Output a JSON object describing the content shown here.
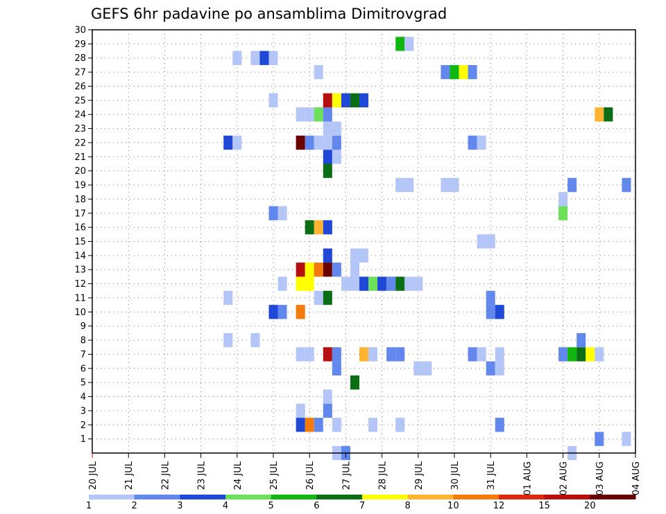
{
  "chart_data": {
    "type": "heatmap",
    "title": "GEFS 6hr padavine po ansamblima Dimitrovgrad",
    "x_tick_labels": [
      "20 JUL",
      "21 JUL",
      "22 JUL",
      "23 JUL",
      "24 JUL",
      "25 JUL",
      "26 JUL",
      "27 JUL",
      "28 JUL",
      "29 JUL",
      "30 JUL",
      "31 JUL",
      "01 AUG",
      "02 AUG",
      "03 AUG",
      "04 AUG"
    ],
    "y_tick_labels": [
      "1",
      "2",
      "3",
      "4",
      "5",
      "6",
      "7",
      "8",
      "9",
      "10",
      "11",
      "12",
      "13",
      "14",
      "15",
      "16",
      "17",
      "18",
      "19",
      "20",
      "21",
      "22",
      "23",
      "24",
      "25",
      "26",
      "27",
      "28",
      "29",
      "30"
    ],
    "xlim_days": [
      0,
      15
    ],
    "ylim_members": [
      0,
      30
    ],
    "grid": true,
    "colorbar": {
      "tick_labels": [
        "1",
        "2",
        "3",
        "4",
        "5",
        "6",
        "7",
        "8",
        "10",
        "12",
        "15",
        "20"
      ],
      "colors": [
        "#b3c6f7",
        "#6288ee",
        "#1f48d6",
        "#6de05a",
        "#11b711",
        "#0a6e14",
        "#ffff00",
        "#ffb330",
        "#f57a0c",
        "#dd2a0f",
        "#b50f0f",
        "#6b0000"
      ]
    },
    "cells": [
      [
        6.75,
        0,
        1
      ],
      [
        7.0,
        0,
        2
      ],
      [
        13.25,
        0,
        1
      ],
      [
        14.0,
        1,
        2
      ],
      [
        14.75,
        1,
        1
      ],
      [
        5.75,
        2,
        3
      ],
      [
        6.0,
        2,
        10
      ],
      [
        6.25,
        2,
        2
      ],
      [
        6.75,
        2,
        1
      ],
      [
        7.75,
        2,
        1
      ],
      [
        8.5,
        2,
        1
      ],
      [
        11.25,
        2,
        2
      ],
      [
        5.75,
        3,
        1
      ],
      [
        6.5,
        3,
        2
      ],
      [
        6.5,
        4,
        1
      ],
      [
        7.25,
        5,
        6
      ],
      [
        6.75,
        6,
        2
      ],
      [
        9.0,
        6,
        1
      ],
      [
        9.25,
        6,
        1
      ],
      [
        11.0,
        6,
        2
      ],
      [
        11.25,
        6,
        1
      ],
      [
        5.75,
        7,
        1
      ],
      [
        6.0,
        7,
        1
      ],
      [
        6.5,
        7,
        15
      ],
      [
        6.75,
        7,
        2
      ],
      [
        7.5,
        7,
        8
      ],
      [
        7.75,
        7,
        1
      ],
      [
        8.25,
        7,
        2
      ],
      [
        8.5,
        7,
        2
      ],
      [
        10.5,
        7,
        2
      ],
      [
        10.75,
        7,
        1
      ],
      [
        11.25,
        7,
        1
      ],
      [
        13.0,
        7,
        2
      ],
      [
        13.25,
        7,
        5
      ],
      [
        13.5,
        7,
        6
      ],
      [
        13.75,
        7,
        7
      ],
      [
        14.0,
        7,
        1
      ],
      [
        3.75,
        8,
        1
      ],
      [
        4.5,
        8,
        1
      ],
      [
        13.5,
        8,
        2
      ],
      [
        5.0,
        10,
        3
      ],
      [
        5.25,
        10,
        2
      ],
      [
        5.75,
        10,
        10
      ],
      [
        11.0,
        10,
        2
      ],
      [
        11.25,
        10,
        3
      ],
      [
        3.75,
        11,
        1
      ],
      [
        6.25,
        11,
        1
      ],
      [
        6.5,
        11,
        6
      ],
      [
        11.0,
        11,
        2
      ],
      [
        5.25,
        12,
        1
      ],
      [
        5.75,
        12,
        7
      ],
      [
        6.0,
        12,
        7
      ],
      [
        7.0,
        12,
        1
      ],
      [
        7.25,
        12,
        1
      ],
      [
        7.5,
        12,
        3
      ],
      [
        7.75,
        12,
        4
      ],
      [
        8.0,
        12,
        3
      ],
      [
        8.25,
        12,
        2
      ],
      [
        8.5,
        12,
        6
      ],
      [
        8.75,
        12,
        1
      ],
      [
        9.0,
        12,
        1
      ],
      [
        5.75,
        13,
        15
      ],
      [
        6.0,
        13,
        7
      ],
      [
        6.25,
        13,
        10
      ],
      [
        6.5,
        13,
        20
      ],
      [
        6.75,
        13,
        2
      ],
      [
        7.25,
        13,
        1
      ],
      [
        6.5,
        14,
        3
      ],
      [
        7.25,
        14,
        1
      ],
      [
        7.5,
        14,
        1
      ],
      [
        10.75,
        15,
        1
      ],
      [
        11.0,
        15,
        1
      ],
      [
        6.0,
        16,
        6
      ],
      [
        6.25,
        16,
        8
      ],
      [
        6.5,
        16,
        3
      ],
      [
        5.0,
        17,
        2
      ],
      [
        5.25,
        17,
        1
      ],
      [
        13.0,
        17,
        4
      ],
      [
        13.0,
        18,
        1
      ],
      [
        8.5,
        19,
        1
      ],
      [
        8.75,
        19,
        1
      ],
      [
        9.75,
        19,
        1
      ],
      [
        10.0,
        19,
        1
      ],
      [
        13.25,
        19,
        2
      ],
      [
        14.75,
        19,
        2
      ],
      [
        6.5,
        20,
        6
      ],
      [
        6.5,
        21,
        3
      ],
      [
        6.75,
        21,
        1
      ],
      [
        3.75,
        22,
        3
      ],
      [
        4.0,
        22,
        1
      ],
      [
        5.75,
        22,
        30
      ],
      [
        6.0,
        22,
        2
      ],
      [
        6.25,
        22,
        1
      ],
      [
        6.5,
        22,
        1
      ],
      [
        6.75,
        22,
        2
      ],
      [
        10.5,
        22,
        2
      ],
      [
        10.75,
        22,
        1
      ],
      [
        6.5,
        23,
        1
      ],
      [
        6.75,
        23,
        1
      ],
      [
        5.75,
        24,
        1
      ],
      [
        6.0,
        24,
        1
      ],
      [
        6.25,
        24,
        4
      ],
      [
        6.5,
        24,
        2
      ],
      [
        14.0,
        24,
        8
      ],
      [
        14.25,
        24,
        6
      ],
      [
        5.0,
        25,
        1
      ],
      [
        6.5,
        25,
        15
      ],
      [
        6.75,
        25,
        7
      ],
      [
        7.0,
        25,
        3
      ],
      [
        7.25,
        25,
        6
      ],
      [
        7.5,
        25,
        3
      ],
      [
        6.25,
        27,
        1
      ],
      [
        9.75,
        27,
        2
      ],
      [
        10.0,
        27,
        5
      ],
      [
        10.25,
        27,
        7
      ],
      [
        10.5,
        27,
        2
      ],
      [
        4.0,
        28,
        1
      ],
      [
        4.5,
        28,
        1
      ],
      [
        4.75,
        28,
        3
      ],
      [
        5.0,
        28,
        1
      ],
      [
        8.5,
        29,
        5
      ],
      [
        8.75,
        29,
        1
      ]
    ]
  }
}
